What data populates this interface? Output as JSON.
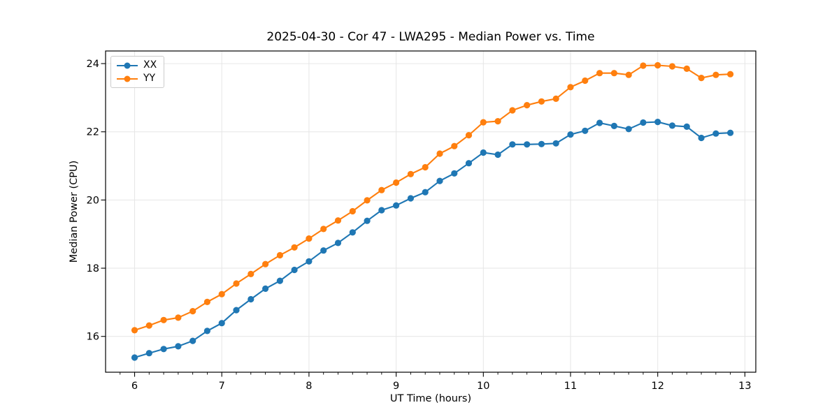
{
  "chart_data": {
    "type": "line",
    "title": "2025-04-30 - Cor 47 - LWA295 - Median Power vs. Time",
    "xlabel": "UT Time (hours)",
    "ylabel": "Median Power (CPU)",
    "x": [
      6.0,
      6.1667,
      6.3333,
      6.5,
      6.6667,
      6.8333,
      7.0,
      7.1667,
      7.3333,
      7.5,
      7.6667,
      7.8333,
      8.0,
      8.1667,
      8.3333,
      8.5,
      8.6667,
      8.8333,
      9.0,
      9.1667,
      9.3333,
      9.5,
      9.6667,
      9.8333,
      10.0,
      10.1667,
      10.3333,
      10.5,
      10.6667,
      10.8333,
      11.0,
      11.1667,
      11.3333,
      11.5,
      11.6667,
      11.8333,
      12.0,
      12.1667,
      12.3333,
      12.5,
      12.6667,
      12.8333
    ],
    "series": [
      {
        "name": "XX",
        "color": "#1f77b4",
        "values": [
          15.38,
          15.51,
          15.63,
          15.71,
          15.87,
          16.16,
          16.39,
          16.77,
          17.09,
          17.4,
          17.63,
          17.95,
          18.2,
          18.52,
          18.74,
          19.05,
          19.39,
          19.7,
          19.84,
          20.05,
          20.23,
          20.56,
          20.78,
          21.08,
          21.39,
          21.33,
          21.63,
          21.63,
          21.64,
          21.66,
          21.92,
          22.03,
          22.26,
          22.17,
          22.08,
          22.27,
          22.29,
          22.18,
          22.15,
          21.82,
          21.95,
          21.97
        ]
      },
      {
        "name": "YY",
        "color": "#ff7f0e",
        "values": [
          16.18,
          16.32,
          16.48,
          16.55,
          16.74,
          17.01,
          17.24,
          17.55,
          17.83,
          18.12,
          18.38,
          18.61,
          18.87,
          19.15,
          19.4,
          19.67,
          19.99,
          20.29,
          20.51,
          20.76,
          20.96,
          21.36,
          21.58,
          21.9,
          22.28,
          22.31,
          22.63,
          22.78,
          22.89,
          22.97,
          23.31,
          23.5,
          23.72,
          23.72,
          23.67,
          23.94,
          23.95,
          23.92,
          23.85,
          23.58,
          23.67,
          23.69
        ]
      }
    ],
    "xticks": [
      6,
      7,
      8,
      9,
      10,
      11,
      12,
      13
    ],
    "yticks": [
      16,
      18,
      20,
      22,
      24
    ],
    "xlim": [
      5.667,
      13.125
    ],
    "ylim": [
      14.95,
      24.37
    ],
    "x_minor_tick_step": 0.16667,
    "grid": true,
    "legend_position": "upper left",
    "grid_color": "#e6e6e6",
    "axis_color": "#000000"
  }
}
